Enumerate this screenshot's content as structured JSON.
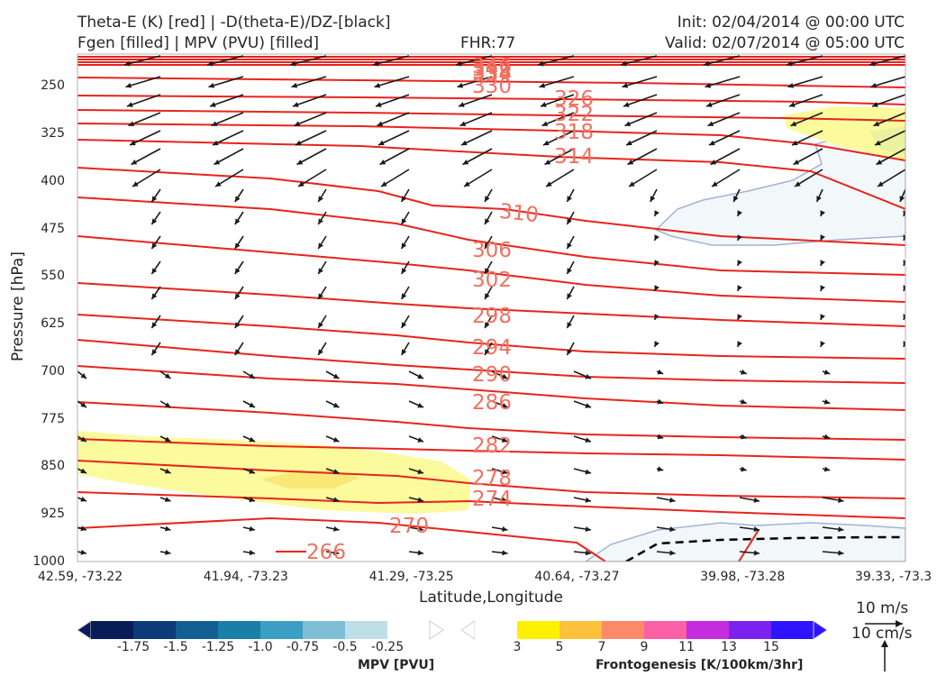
{
  "header": {
    "title_line1": "Theta-E (K) [red] | -D(theta-E)/DZ-[black]",
    "title_line2": "Fgen [filled] | MPV (PVU) [filled]",
    "fhr": "FHR:77",
    "init": "Init: 02/04/2014 @ 00:00 UTC",
    "valid": "Valid: 02/07/2014 @ 05:00 UTC"
  },
  "chart_data": {
    "type": "cross-section",
    "xlabel": "Latitude,Longitude",
    "ylabel": "Pressure [hPa]",
    "x_ticks": [
      "42.59, -73.22",
      "41.94, -73.23",
      "41.29, -73.25",
      "40.64, -73.27",
      "39.98, -73.28",
      "39.33, -73.3"
    ],
    "y_ticks": [
      250,
      325,
      400,
      475,
      550,
      625,
      700,
      775,
      850,
      925,
      1000
    ],
    "ylim": [
      200,
      1000
    ],
    "theta_e_labels": [
      "346",
      "342",
      "338",
      "334",
      "330",
      "326",
      "322",
      "318",
      "314",
      "310",
      "306",
      "302",
      "298",
      "294",
      "290",
      "286",
      "282",
      "278",
      "274",
      "270",
      "266"
    ],
    "contour_colors": {
      "theta_e": "#e8241c",
      "label": "#f07060",
      "mpv": "#a0b4d4",
      "mpv_fill": "#f2f7fa",
      "fgen_fill": "#fbfa9c",
      "fgen_fill_strong": "#f9e878",
      "wind": "#1a1a1a"
    },
    "mpv_colorbar": {
      "label": "MPV [PVU]",
      "ticks": [
        "-1.75",
        "-1.5",
        "-1.25",
        "-1.0",
        "-0.75",
        "-0.5",
        "-0.25"
      ],
      "colors": [
        "#081d58",
        "#0c3b78",
        "#125e93",
        "#1a7fa8",
        "#3a9fc2",
        "#7ebfd6",
        "#bfdfe8",
        "#ffffff"
      ]
    },
    "fgen_colorbar": {
      "label": "Frontogenesis [K/100km/3hr]",
      "ticks": [
        "3",
        "5",
        "7",
        "9",
        "11",
        "13",
        "15"
      ],
      "colors": [
        "#ffffff",
        "#fff000",
        "#fdc13c",
        "#fb8a6a",
        "#fb5fa6",
        "#c52cde",
        "#7b22f0",
        "#2e14ff"
      ]
    },
    "wind_legend": {
      "horizontal": "10 m/s",
      "vertical": "10 cm/s"
    }
  }
}
